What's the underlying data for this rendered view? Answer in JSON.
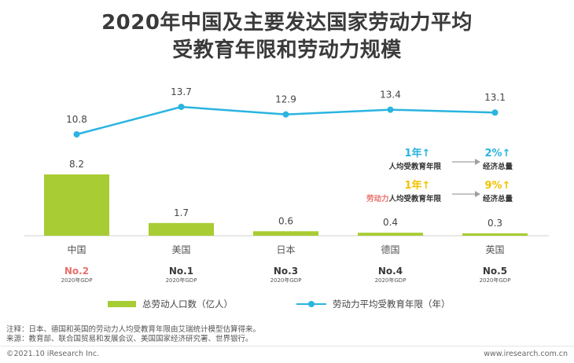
{
  "title_line1": "2020年中国及主要发达国家劳动力平均",
  "title_line2": "受教育年限和劳动力规模",
  "chart_data": {
    "type": "bar+line",
    "categories": [
      "中国",
      "美国",
      "日本",
      "德国",
      "英国"
    ],
    "series": [
      {
        "name": "总劳动人口数（亿人）",
        "type": "bar",
        "values": [
          8.2,
          1.7,
          0.6,
          0.4,
          0.3
        ]
      },
      {
        "name": "劳动力平均受教育年限（年）",
        "type": "line",
        "values": [
          10.8,
          13.7,
          12.9,
          13.4,
          13.1
        ]
      }
    ],
    "ranks": [
      "No.2",
      "No.1",
      "No.3",
      "No.4",
      "No.5"
    ],
    "rank_caption": "2020年GDP",
    "rank_colors": [
      "#e8706c",
      "#3a3a3a",
      "#3a3a3a",
      "#3a3a3a",
      "#3a3a3a"
    ],
    "bar_color": "#a8cc33",
    "line_color": "#2ab4e0",
    "legend_position": "bottom"
  },
  "annotations": [
    {
      "left_big": "1年↑",
      "left_big_color": "#2ab4e0",
      "left_prefix": "",
      "left_small": "人均受教育年限",
      "right_big": "2%↑",
      "right_big_color": "#2ab4e0",
      "right_small": "经济总量"
    },
    {
      "left_big": "1年↑",
      "left_big_color": "#f2c200",
      "left_prefix": "劳动力",
      "left_small": "人均受教育年限",
      "right_big": "9%↑",
      "right_big_color": "#f2c200",
      "right_small": "经济总量"
    }
  ],
  "annotation_prefix_color": "#e8706c",
  "notes": [
    "注释：日本、德国和英国的劳动力人均受教育年限由艾瑞统计模型估算得来。",
    "来源：教育部、联合国贸易和发展会议、美国国家经济研究署、世界银行。"
  ],
  "footer_left": "©2021.10 iResearch Inc.",
  "footer_right": "www.iresearch.com.cn"
}
